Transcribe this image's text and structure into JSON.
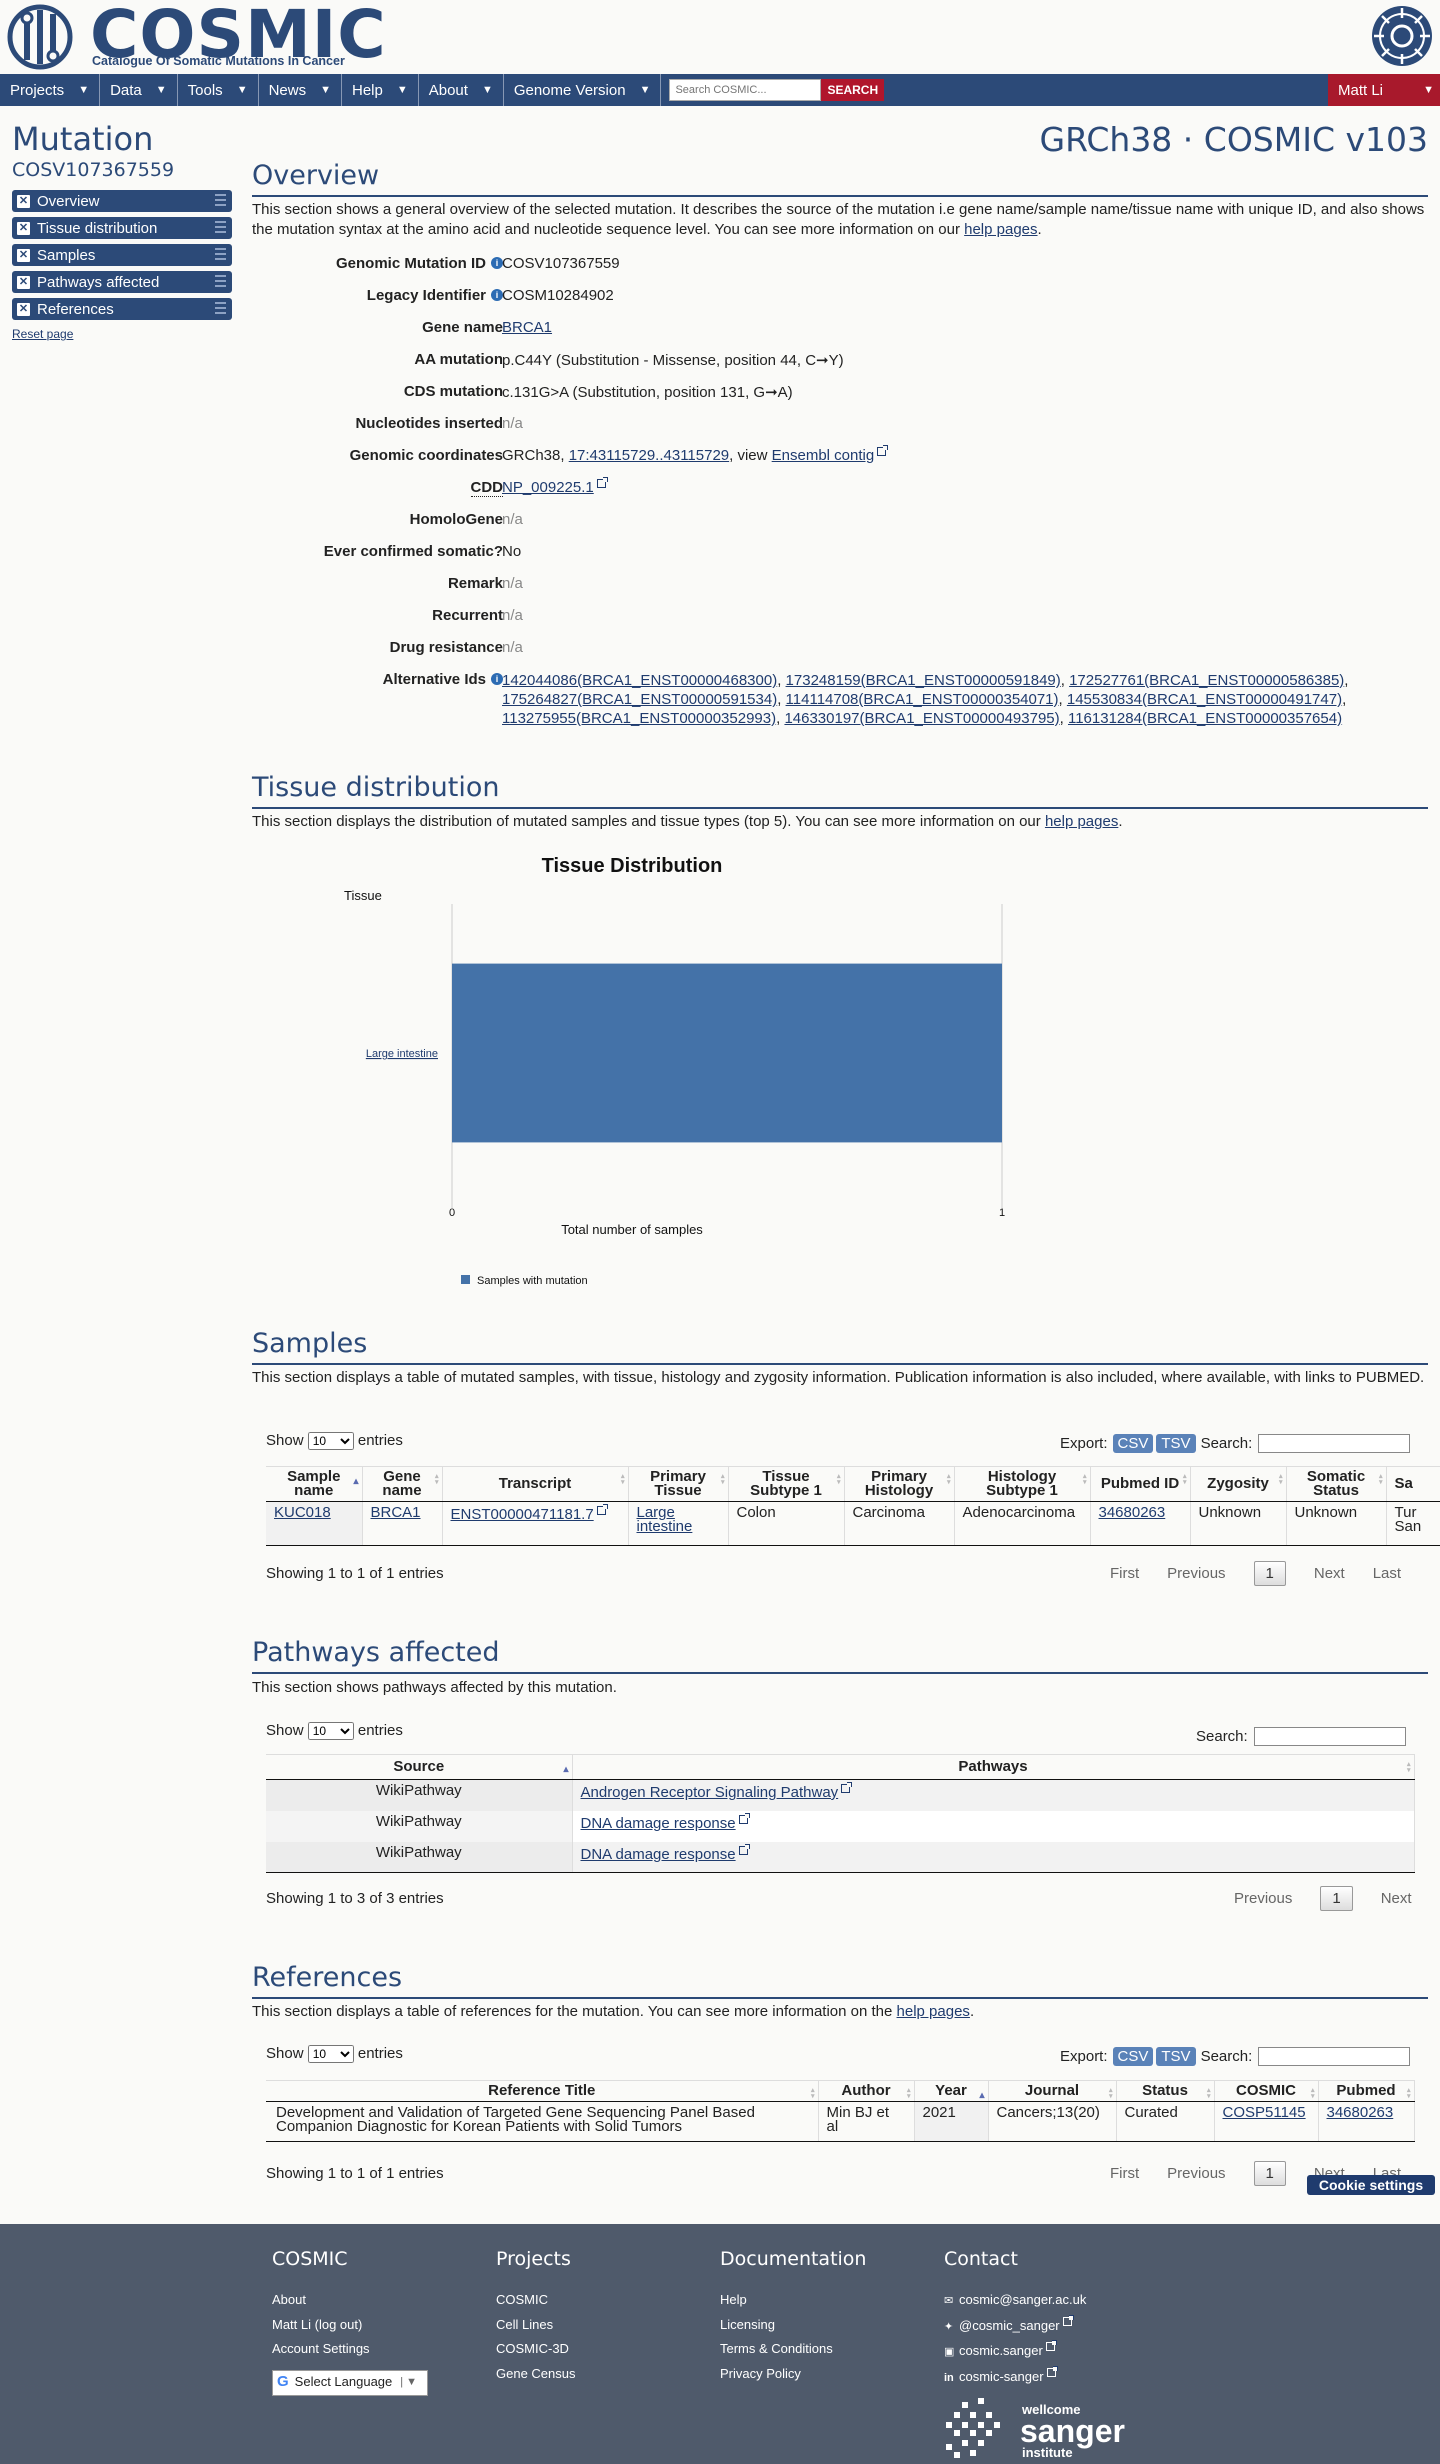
{
  "header": {
    "logo_text": "COSMIC",
    "tagline": "Catalogue Of Somatic Mutations In Cancer"
  },
  "nav": {
    "items": [
      "Projects",
      "Data",
      "Tools",
      "News",
      "Help",
      "About",
      "Genome Version"
    ],
    "search_placeholder": "Search COSMIC...",
    "search_label": "SEARCH",
    "user": "Matt Li"
  },
  "sidebar": {
    "title": "Mutation",
    "subtitle": "COSV107367559",
    "items": [
      "Overview",
      "Tissue distribution",
      "Samples",
      "Pathways affected",
      "References"
    ],
    "reset": "Reset page"
  },
  "version_title": "GRCh38 · COSMIC v103",
  "overview": {
    "heading": "Overview",
    "desc_pre": "This section shows a general overview of the selected mutation. It describes the source of the mutation i.e gene name/sample name/tissue name with unique ID, and also shows the mutation syntax at the amino acid and nucleotide sequence level. You can see more information on our ",
    "desc_link": "help pages",
    "desc_post": ".",
    "fields": {
      "genomic_mutation_id": {
        "label": "Genomic Mutation ID",
        "value": "COSV107367559"
      },
      "legacy_identifier": {
        "label": "Legacy Identifier",
        "value": "COSM10284902"
      },
      "gene_name": {
        "label": "Gene name",
        "value": "BRCA1"
      },
      "aa_mutation": {
        "label": "AA mutation",
        "value": "p.C44Y (Substitution - Missense, position 44, C➞Y)"
      },
      "cds_mutation": {
        "label": "CDS mutation",
        "value": "c.131G>A (Substitution, position 131, G➞A)"
      },
      "nucleotides_inserted": {
        "label": "Nucleotides inserted",
        "value": "n/a"
      },
      "genomic_coordinates": {
        "label": "Genomic coordinates",
        "prefix": "GRCh38, ",
        "link": "17:43115729..43115729",
        "middle": ", view ",
        "link2": "Ensembl contig"
      },
      "cdd": {
        "label": "CDD",
        "value": "NP_009225.1"
      },
      "homologene": {
        "label": "HomoloGene",
        "value": "n/a"
      },
      "ever_confirmed": {
        "label": "Ever confirmed somatic?",
        "value": "No"
      },
      "remark": {
        "label": "Remark",
        "value": "n/a"
      },
      "recurrent": {
        "label": "Recurrent",
        "value": "n/a"
      },
      "drug_resistance": {
        "label": "Drug resistance",
        "value": "n/a"
      },
      "alternative_ids": {
        "label": "Alternative Ids",
        "ids": [
          "142044086(BRCA1_ENST00000468300)",
          "173248159(BRCA1_ENST00000591849)",
          "172527761(BRCA1_ENST00000586385)",
          "175264827(BRCA1_ENST00000591534)",
          "114114708(BRCA1_ENST00000354071)",
          "145530834(BRCA1_ENST00000491747)",
          "113275955(BRCA1_ENST00000352993)",
          "146330197(BRCA1_ENST00000493795)",
          "116131284(BRCA1_ENST00000357654)"
        ]
      }
    }
  },
  "tissue": {
    "heading": "Tissue distribution",
    "desc_pre": "This section displays the distribution of mutated samples and tissue types (top 5). You can see more information on our ",
    "desc_link": "help pages",
    "desc_post": "."
  },
  "chart_data": {
    "type": "bar",
    "orientation": "horizontal",
    "title": "Tissue Distribution",
    "ylabel": "Tissue",
    "xlabel": "Total number of samples",
    "categories": [
      "Large intestine"
    ],
    "series": [
      {
        "name": "Samples with mutation",
        "values": [
          1
        ]
      }
    ],
    "xlim": [
      0,
      1
    ],
    "xticks": [
      "0",
      "1"
    ],
    "color": "#4472a8",
    "legend": "bottom"
  },
  "samples": {
    "heading": "Samples",
    "desc": "This section displays a table of mutated samples, with tissue, histology and zygosity information. Publication information is also included, where available, with links to PUBMED.",
    "show": "Show",
    "entries": "entries",
    "page_size": "10",
    "export": "Export:",
    "csv": "CSV",
    "tsv": "TSV",
    "search": "Search:",
    "columns": [
      "Sample name",
      "Gene name",
      "Transcript",
      "Primary Tissue",
      "Tissue Subtype 1",
      "Primary Histology",
      "Histology Subtype 1",
      "Pubmed ID",
      "Zygosity",
      "Somatic Status",
      "Sa"
    ],
    "rows": [
      {
        "sample": "KUC018",
        "gene": "BRCA1",
        "transcript": "ENST00000471181.7",
        "tissue1": "Large",
        "tissue2": "intestine",
        "subtype": "Colon",
        "histology": "Carcinoma",
        "hist_sub": "Adenocarcinoma",
        "pubmed": "34680263",
        "zygosity": "Unknown",
        "somatic": "Unknown",
        "extra1": "Tur",
        "extra2": "San"
      }
    ],
    "info": "Showing 1 to 1 of 1 entries",
    "pager": {
      "first": "First",
      "prev": "Previous",
      "page": "1",
      "next": "Next",
      "last": "Last"
    }
  },
  "pathways": {
    "heading": "Pathways affected",
    "desc": "This section shows pathways affected by this mutation.",
    "show": "Show",
    "entries": "entries",
    "page_size": "10",
    "search": "Search:",
    "columns": [
      "Source",
      "Pathways"
    ],
    "rows": [
      {
        "source": "WikiPathway",
        "pathway": "Androgen Receptor Signaling Pathway"
      },
      {
        "source": "WikiPathway",
        "pathway": "DNA damage response"
      },
      {
        "source": "WikiPathway",
        "pathway": "DNA damage response"
      }
    ],
    "info": "Showing 1 to 3 of 3 entries",
    "pager": {
      "prev": "Previous",
      "page": "1",
      "next": "Next"
    }
  },
  "references": {
    "heading": "References",
    "desc_pre": "This section displays a table of references for the mutation. You can see more information on the ",
    "desc_link": "help pages",
    "desc_post": ".",
    "show": "Show",
    "entries": "entries",
    "page_size": "10",
    "export": "Export:",
    "csv": "CSV",
    "tsv": "TSV",
    "search": "Search:",
    "columns": [
      "Reference Title",
      "Author",
      "Year",
      "Journal",
      "Status",
      "COSMIC",
      "Pubmed"
    ],
    "rows": [
      {
        "title1": "Development and Validation of Targeted Gene Sequencing Panel Based",
        "title2": "Companion Diagnostic for Korean Patients with Solid Tumors",
        "author1": "Min BJ et",
        "author2": "al",
        "year": "2021",
        "journal": "Cancers;13(20)",
        "status": "Curated",
        "cosmic": "COSP51145",
        "pubmed": "34680263"
      }
    ],
    "info": "Showing 1 to 1 of 1 entries",
    "pager": {
      "first": "First",
      "prev": "Previous",
      "page": "1",
      "next": "Next",
      "last": "Last"
    }
  },
  "cookie_button": "Cookie settings",
  "footer": {
    "cosmic": {
      "heading": "COSMIC",
      "links": [
        "About",
        "Matt Li (log out)",
        "Account Settings"
      ],
      "language": "Select Language"
    },
    "projects": {
      "heading": "Projects",
      "links": [
        "COSMIC",
        "Cell Lines",
        "COSMIC-3D",
        "Gene Census"
      ]
    },
    "documentation": {
      "heading": "Documentation",
      "links": [
        "Help",
        "Licensing",
        "Terms & Conditions",
        "Privacy Policy"
      ]
    },
    "contact": {
      "heading": "Contact",
      "links": [
        "cosmic@sanger.ac.uk",
        "@cosmic_sanger",
        "cosmic.sanger",
        "cosmic-sanger"
      ],
      "icons": [
        "envelope-icon",
        "twitter-icon",
        "facebook-icon",
        "linkedin-icon"
      ]
    },
    "wellcome": "wellcome",
    "sanger": "sanger",
    "institute": "institute"
  }
}
